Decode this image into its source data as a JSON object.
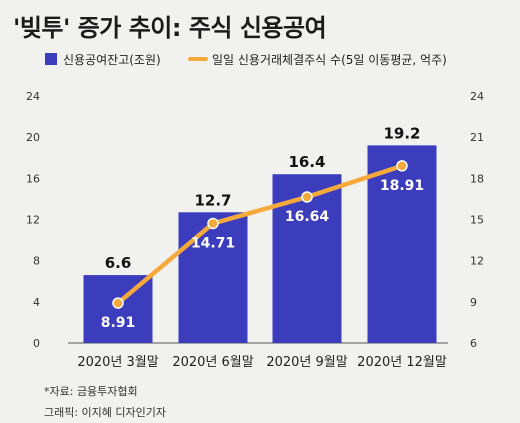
{
  "title": "'빚투' 증가 추이: 주식 신용공여",
  "footer": {
    "source": "*자료: 금융투자협회",
    "credit": "그래픽: 이지혜 디자인기자"
  },
  "chart_data": {
    "type": "bar",
    "categories": [
      "2020년 3월말",
      "2020년 6월말",
      "2020년 9월말",
      "2020년 12월말"
    ],
    "series": [
      {
        "name": "신용공여잔고(조원)",
        "type": "bar",
        "axis": "left",
        "values": [
          6.6,
          12.7,
          16.4,
          19.2
        ],
        "labels": [
          "6.6",
          "12.7",
          "16.4",
          "19.2"
        ],
        "color": "#3b3dbd"
      },
      {
        "name": "일일 신용거래체결주식 수(5일 이동평균, 억주)",
        "type": "line",
        "axis": "right",
        "values": [
          8.91,
          14.71,
          16.64,
          18.91
        ],
        "labels": [
          "8.91",
          "14.71",
          "16.64",
          "18.91"
        ],
        "color": "#f5a93b"
      }
    ],
    "y_left": {
      "min": 0,
      "max": 24,
      "ticks": [
        "0",
        "4",
        "8",
        "12",
        "16",
        "20",
        "24"
      ]
    },
    "y_right": {
      "min": 6,
      "max": 24,
      "ticks": [
        "6",
        "9",
        "12",
        "15",
        "18",
        "21",
        "24"
      ]
    },
    "grid": false,
    "legend": "top-left"
  }
}
